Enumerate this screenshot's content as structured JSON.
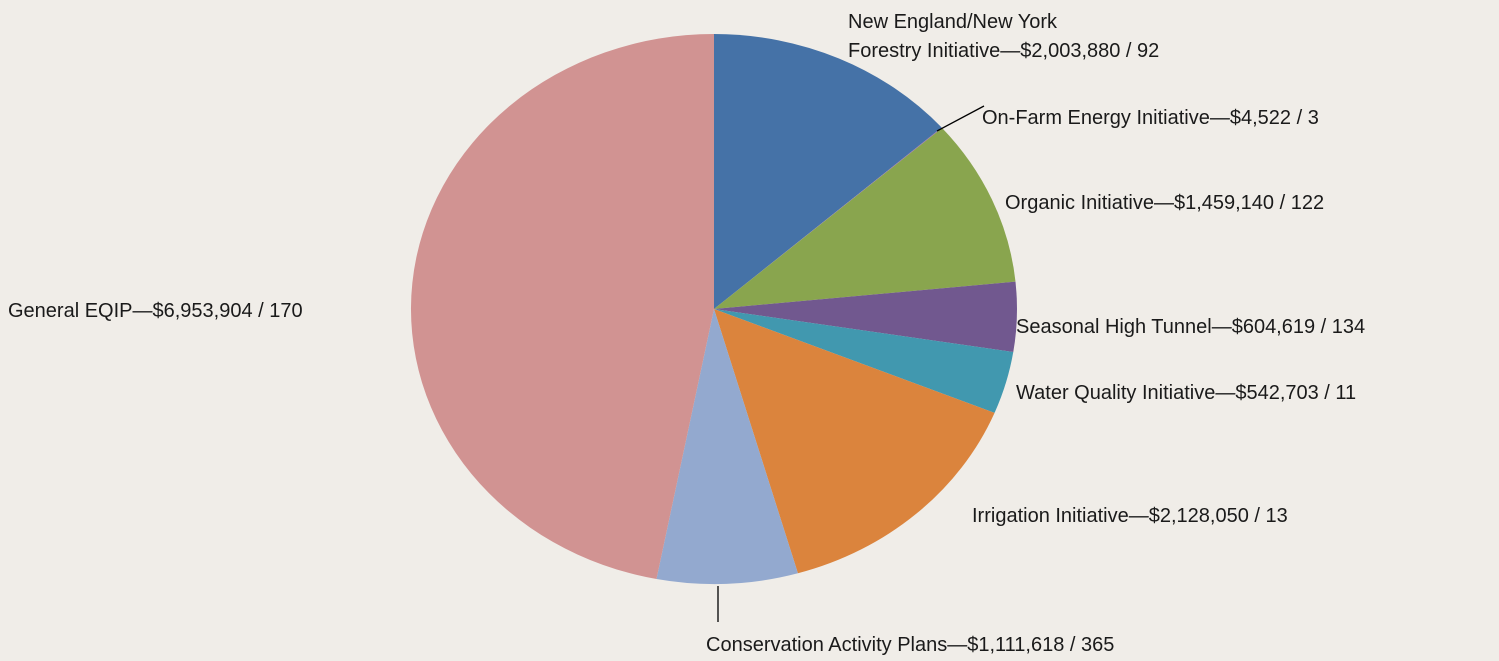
{
  "chart_data": {
    "type": "pie",
    "start_angle_deg": 0,
    "direction": "clockwise",
    "slices": [
      {
        "lines": [
          "New England/New York",
          "Forestry Initiative—$2,003,880 / 92"
        ],
        "value": 2003880,
        "count": 92,
        "color": "#4572a7"
      },
      {
        "lines": [
          "On-Farm Energy Initiative—$4,522 / 3"
        ],
        "value": 4522,
        "count": 3,
        "color": "#9b6ab0"
      },
      {
        "lines": [
          "Organic Initiative—$1,459,140 / 122"
        ],
        "value": 1459140,
        "count": 122,
        "color": "#89a54e"
      },
      {
        "lines": [
          "Seasonal High Tunnel—$604,619 / 134"
        ],
        "value": 604619,
        "count": 134,
        "color": "#71588f"
      },
      {
        "lines": [
          "Water Quality Initiative—$542,703 / 11"
        ],
        "value": 542703,
        "count": 11,
        "color": "#4198af"
      },
      {
        "lines": [
          "Irrigation Initiative—$2,128,050 / 13"
        ],
        "value": 2128050,
        "count": 13,
        "color": "#db843d"
      },
      {
        "lines": [
          "Conservation Activity Plans—$1,111,618 / 365"
        ],
        "value": 1111618,
        "count": 365,
        "color": "#93a9cf"
      },
      {
        "lines": [
          "General EQIP—$6,953,904 / 170"
        ],
        "value": 6953904,
        "count": 170,
        "color": "#d19392"
      }
    ]
  }
}
